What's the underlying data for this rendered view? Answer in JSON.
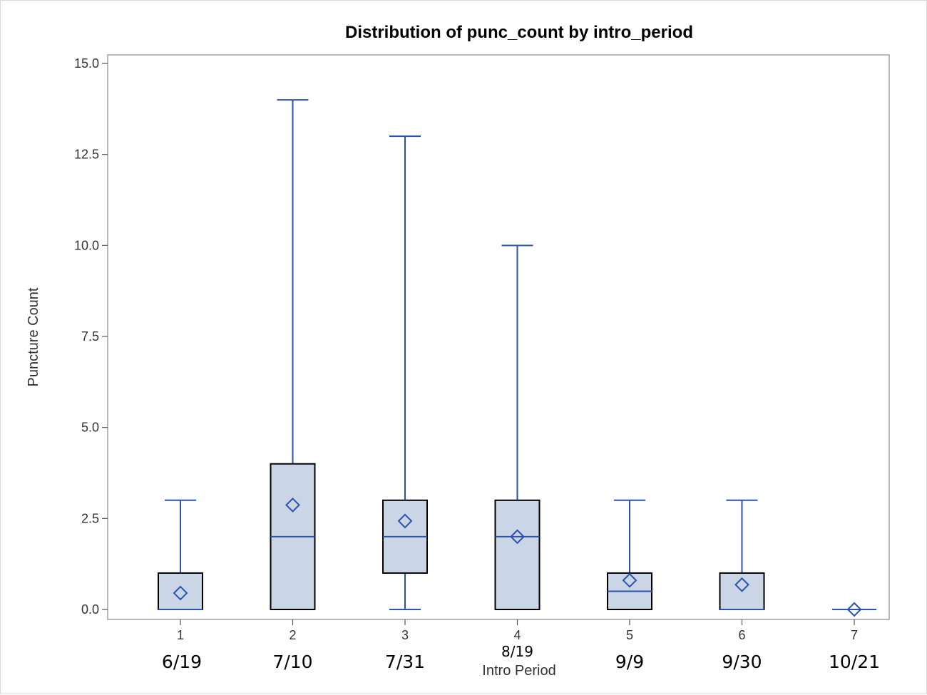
{
  "chart_data": {
    "type": "box",
    "title": "Distribution of punc_count by intro_period",
    "xlabel": "Intro Period",
    "ylabel": "Puncture Count",
    "ylim": [
      0,
      15
    ],
    "yticks": [
      "0.0",
      "2.5",
      "5.0",
      "7.5",
      "10.0",
      "12.5",
      "15.0"
    ],
    "categories": [
      "1",
      "2",
      "3",
      "4",
      "5",
      "6",
      "7"
    ],
    "date_labels": [
      "6/19",
      "7/10",
      "7/31",
      "8/19",
      "9/9",
      "9/30",
      "10/21"
    ],
    "boxes": [
      {
        "category": "1",
        "min": 0,
        "q1": 0,
        "median": 0,
        "q3": 1,
        "max": 3,
        "mean": 0.45
      },
      {
        "category": "2",
        "min": 0,
        "q1": 0,
        "median": 2,
        "q3": 4,
        "max": 14,
        "mean": 2.87
      },
      {
        "category": "3",
        "min": 0,
        "q1": 1,
        "median": 2,
        "q3": 3,
        "max": 13,
        "mean": 2.43
      },
      {
        "category": "4",
        "min": 0,
        "q1": 0,
        "median": 2,
        "q3": 3,
        "max": 10,
        "mean": 2.0
      },
      {
        "category": "5",
        "min": 0,
        "q1": 0,
        "median": 0.5,
        "q3": 1,
        "max": 3,
        "mean": 0.8
      },
      {
        "category": "6",
        "min": 0,
        "q1": 0,
        "median": 0,
        "q3": 1,
        "max": 3,
        "mean": 0.68
      },
      {
        "category": "7",
        "min": 0,
        "q1": 0,
        "median": 0,
        "q3": 0,
        "max": 0,
        "mean": 0.0
      }
    ],
    "grid": false,
    "colors": {
      "box_fill": "#cad5e5",
      "box_edge": "#000000",
      "whisker": "#2a52b0",
      "mean_marker": "#2a52b0",
      "frame": "#a0a0a0"
    }
  }
}
